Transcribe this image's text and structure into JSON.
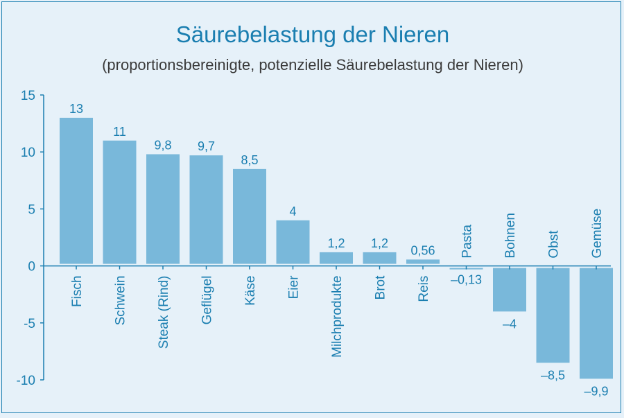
{
  "chart_data": {
    "type": "bar",
    "title": "Säurebelastung der Nieren",
    "subtitle": "(proportionsbereinigte, potenzielle Säurebelastung der Nieren)",
    "xlabel": "",
    "ylabel": "",
    "ylim": [
      -10,
      15
    ],
    "yticks": [
      15,
      10,
      5,
      0,
      -5,
      -10
    ],
    "ytick_labels": [
      "15",
      "10",
      "5",
      "0",
      "-5",
      "-10"
    ],
    "categories": [
      "Fisch",
      "Schwein",
      "Steak (Rind)",
      "Geflügel",
      "Käse",
      "Eier",
      "Milchprodukte",
      "Brot",
      "Reis",
      "Pasta",
      "Bohnen",
      "Obst",
      "Gemüse"
    ],
    "values": [
      13,
      11,
      9.8,
      9.7,
      8.5,
      4,
      1.2,
      1.2,
      0.56,
      -0.13,
      -4,
      -8.5,
      -9.9
    ],
    "value_labels": [
      "13",
      "11",
      "9,8",
      "9,7",
      "8,5",
      "4",
      "1,2",
      "1,2",
      "0,56",
      "–0,13",
      "–4",
      "–8,5",
      "–9,9"
    ],
    "grid": false,
    "legend": "none",
    "bar_color": "#79b8da",
    "text_color": "#1a7eb0"
  }
}
